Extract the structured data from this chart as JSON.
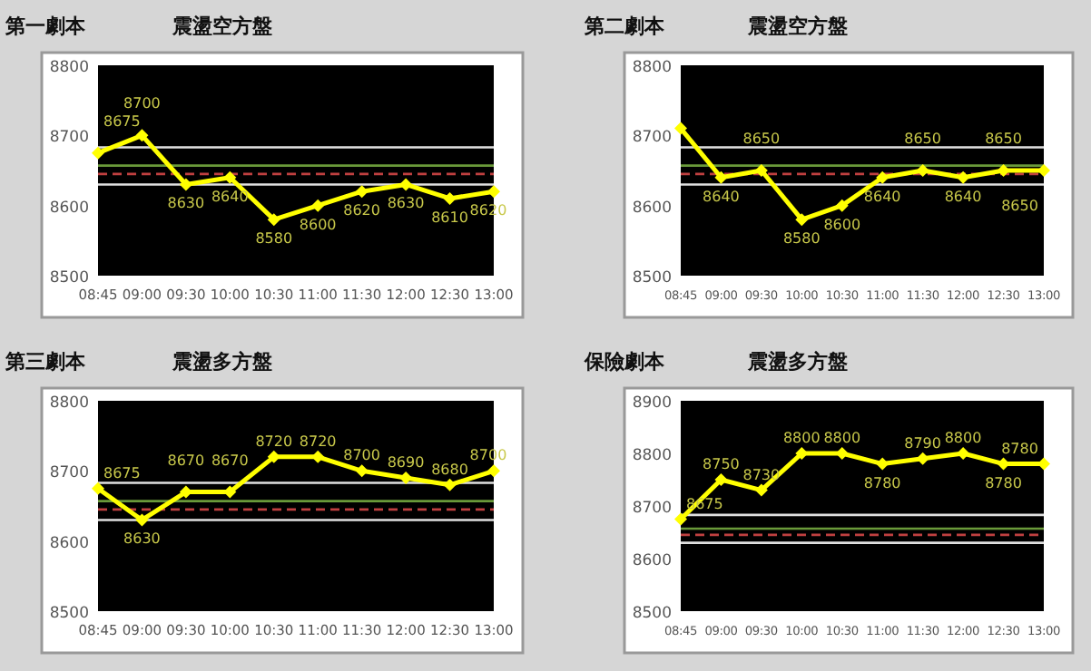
{
  "chart_data": [
    {
      "type": "line",
      "title": "第一劇本",
      "subtitle": "震盪空方盤",
      "categories": [
        "08:45",
        "09:00",
        "09:30",
        "10:00",
        "10:30",
        "11:00",
        "11:30",
        "12:00",
        "12:30",
        "13:00"
      ],
      "series": [
        {
          "color": "#ffff00",
          "values": [
            8675,
            8700,
            8630,
            8640,
            8580,
            8600,
            8620,
            8630,
            8610,
            8620
          ]
        }
      ],
      "ylim": [
        8500,
        8800
      ],
      "yticks": [
        8500,
        8600,
        8700,
        8800
      ],
      "marker": "diamond",
      "data_labels": true,
      "ref_lines": [
        {
          "axis": "y",
          "value": 8683,
          "color": "#e0e0e0",
          "line_style": "solid"
        },
        {
          "axis": "y",
          "value": 8657,
          "color": "#6a9a3a",
          "line_style": "solid"
        },
        {
          "axis": "y",
          "value": 8645,
          "color": "#c04040",
          "line_style": "dashed"
        },
        {
          "axis": "y",
          "value": 8630,
          "color": "#e0e0e0",
          "line_style": "solid"
        }
      ]
    },
    {
      "type": "line",
      "title": "第二劇本",
      "subtitle": "震盪空方盤",
      "categories": [
        "08:45",
        "09:00",
        "09:30",
        "10:00",
        "10:30",
        "11:00",
        "11:30",
        "12:00",
        "12:30",
        "13:00"
      ],
      "series": [
        {
          "color": "#ffff00",
          "values": [
            8710,
            8640,
            8650,
            8580,
            8600,
            8640,
            8650,
            8640,
            8650,
            8650
          ],
          "value_labels": [
            null,
            "8640",
            "8650",
            "8580",
            "8600",
            "8640",
            "8650",
            "8640",
            "8650",
            "8650"
          ]
        }
      ],
      "ylim": [
        8500,
        8800
      ],
      "yticks": [
        8500,
        8600,
        8700,
        8800
      ],
      "marker": "diamond",
      "ref_lines": [
        {
          "axis": "y",
          "value": 8683,
          "color": "#e0e0e0",
          "line_style": "solid"
        },
        {
          "axis": "y",
          "value": 8657,
          "color": "#6a9a3a",
          "line_style": "solid"
        },
        {
          "axis": "y",
          "value": 8645,
          "color": "#c04040",
          "line_style": "dashed"
        },
        {
          "axis": "y",
          "value": 8630,
          "color": "#e0e0e0",
          "line_style": "solid"
        }
      ]
    },
    {
      "type": "line",
      "title": "第三劇本",
      "subtitle": "震盪多方盤",
      "categories": [
        "08:45",
        "09:00",
        "09:30",
        "10:00",
        "10:30",
        "11:00",
        "11:30",
        "12:00",
        "12:30",
        "13:00"
      ],
      "series": [
        {
          "color": "#ffff00",
          "values": [
            8675,
            8630,
            8670,
            8670,
            8720,
            8720,
            8700,
            8690,
            8680,
            8700
          ]
        }
      ],
      "ylim": [
        8500,
        8800
      ],
      "yticks": [
        8500,
        8600,
        8700,
        8800
      ],
      "marker": "diamond",
      "data_labels": true,
      "ref_lines": [
        {
          "axis": "y",
          "value": 8683,
          "color": "#e0e0e0",
          "line_style": "solid"
        },
        {
          "axis": "y",
          "value": 8657,
          "color": "#6a9a3a",
          "line_style": "solid"
        },
        {
          "axis": "y",
          "value": 8645,
          "color": "#c04040",
          "line_style": "dashed"
        },
        {
          "axis": "y",
          "value": 8630,
          "color": "#e0e0e0",
          "line_style": "solid"
        }
      ]
    },
    {
      "type": "line",
      "title": "保險劇本",
      "subtitle": "震盪多方盤",
      "categories": [
        "08:45",
        "09:00",
        "09:30",
        "10:00",
        "10:30",
        "11:00",
        "11:30",
        "12:00",
        "12:30",
        "13:00"
      ],
      "series": [
        {
          "color": "#ffff00",
          "values": [
            8675,
            8750,
            8730,
            8800,
            8800,
            8780,
            8790,
            8800,
            8780,
            8780
          ]
        }
      ],
      "ylim": [
        8500,
        8900
      ],
      "yticks": [
        8500,
        8600,
        8700,
        8800,
        8900
      ],
      "marker": "diamond",
      "data_labels": true,
      "ref_lines": [
        {
          "axis": "y",
          "value": 8683,
          "color": "#e0e0e0",
          "line_style": "solid"
        },
        {
          "axis": "y",
          "value": 8657,
          "color": "#6a9a3a",
          "line_style": "solid"
        },
        {
          "axis": "y",
          "value": 8645,
          "color": "#c04040",
          "line_style": "dashed"
        },
        {
          "axis": "y",
          "value": 8630,
          "color": "#e0e0e0",
          "line_style": "solid"
        }
      ]
    }
  ]
}
